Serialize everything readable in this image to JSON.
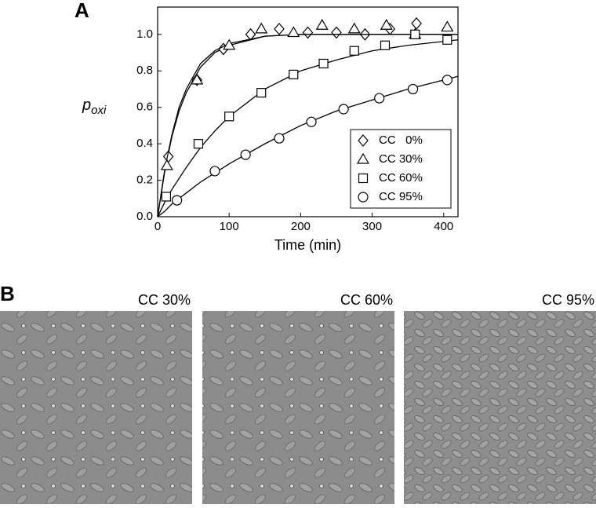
{
  "panel_a": "A",
  "panel_b": "B",
  "chart_data": {
    "type": "scatter",
    "xlabel": "Time (min)",
    "ylabel": {
      "main": "p",
      "sub": "oxi"
    },
    "xlim": [
      0,
      420
    ],
    "xticks": [
      0,
      100,
      200,
      300,
      400
    ],
    "ylim": [
      0,
      1.15
    ],
    "yticks": [
      {
        "value": 0,
        "label": "0.0"
      },
      0.2,
      0.4,
      0.6,
      0.8,
      {
        "value": 1,
        "label": "1.0"
      }
    ],
    "legend": "lower right",
    "series": [
      {
        "name": "CC   0%",
        "color": "#000000",
        "marker": "diamond",
        "x": [
          15,
          55,
          92,
          130,
          170,
          210,
          250,
          290,
          325,
          362
        ],
        "values": [
          0.33,
          0.75,
          0.92,
          1.0,
          1.03,
          1.01,
          1.01,
          1.0,
          1.03,
          1.06
        ],
        "fit_x": [
          0,
          10,
          20,
          30,
          40,
          60,
          80,
          100,
          150,
          200,
          250,
          300,
          350,
          420
        ],
        "fit_values": [
          0,
          0.25,
          0.44,
          0.58,
          0.68,
          0.82,
          0.9,
          0.94,
          0.99,
          1.0,
          1.0,
          1.0,
          1.0,
          1.0
        ]
      },
      {
        "name": "CC 30%",
        "color": "#000000",
        "marker": "triangle",
        "x": [
          13,
          55,
          100,
          145,
          190,
          230,
          275,
          320,
          360,
          405
        ],
        "values": [
          0.28,
          0.75,
          0.94,
          1.03,
          1.01,
          1.05,
          1.03,
          1.05,
          1.0,
          1.04
        ],
        "fit_x": [
          0,
          10,
          20,
          30,
          40,
          60,
          80,
          100,
          150,
          200,
          250,
          300,
          350,
          420
        ],
        "fit_values": [
          0,
          0.26,
          0.45,
          0.6,
          0.7,
          0.84,
          0.91,
          0.95,
          0.99,
          1.0,
          1.0,
          1.0,
          1.0,
          1.0
        ]
      },
      {
        "name": "CC 60%",
        "color": "#000000",
        "marker": "square",
        "x": [
          12,
          57,
          100,
          145,
          190,
          232,
          275,
          318,
          360,
          405
        ],
        "values": [
          0.11,
          0.4,
          0.55,
          0.68,
          0.78,
          0.84,
          0.91,
          0.94,
          1.0,
          0.97
        ],
        "fit_x": [
          0,
          10,
          20,
          30,
          40,
          60,
          80,
          100,
          150,
          200,
          250,
          300,
          350,
          420
        ],
        "fit_values": [
          0,
          0.08,
          0.15,
          0.21,
          0.27,
          0.38,
          0.47,
          0.55,
          0.7,
          0.8,
          0.86,
          0.91,
          0.94,
          0.97
        ]
      },
      {
        "name": "CC 95%",
        "color": "#000000",
        "marker": "circle",
        "x": [
          27,
          80,
          123,
          170,
          215,
          260,
          310,
          357,
          405
        ],
        "values": [
          0.09,
          0.25,
          0.34,
          0.43,
          0.52,
          0.59,
          0.65,
          0.7,
          0.75
        ],
        "fit_x": [
          0,
          10,
          20,
          30,
          40,
          60,
          80,
          100,
          150,
          200,
          250,
          300,
          350,
          420
        ],
        "fit_values": [
          0,
          0.03,
          0.07,
          0.1,
          0.13,
          0.19,
          0.24,
          0.29,
          0.4,
          0.5,
          0.58,
          0.64,
          0.7,
          0.77
        ]
      }
    ]
  },
  "images": [
    {
      "caption": "CC 30%"
    },
    {
      "caption": "CC 60%"
    },
    {
      "caption": "CC 95%"
    }
  ]
}
